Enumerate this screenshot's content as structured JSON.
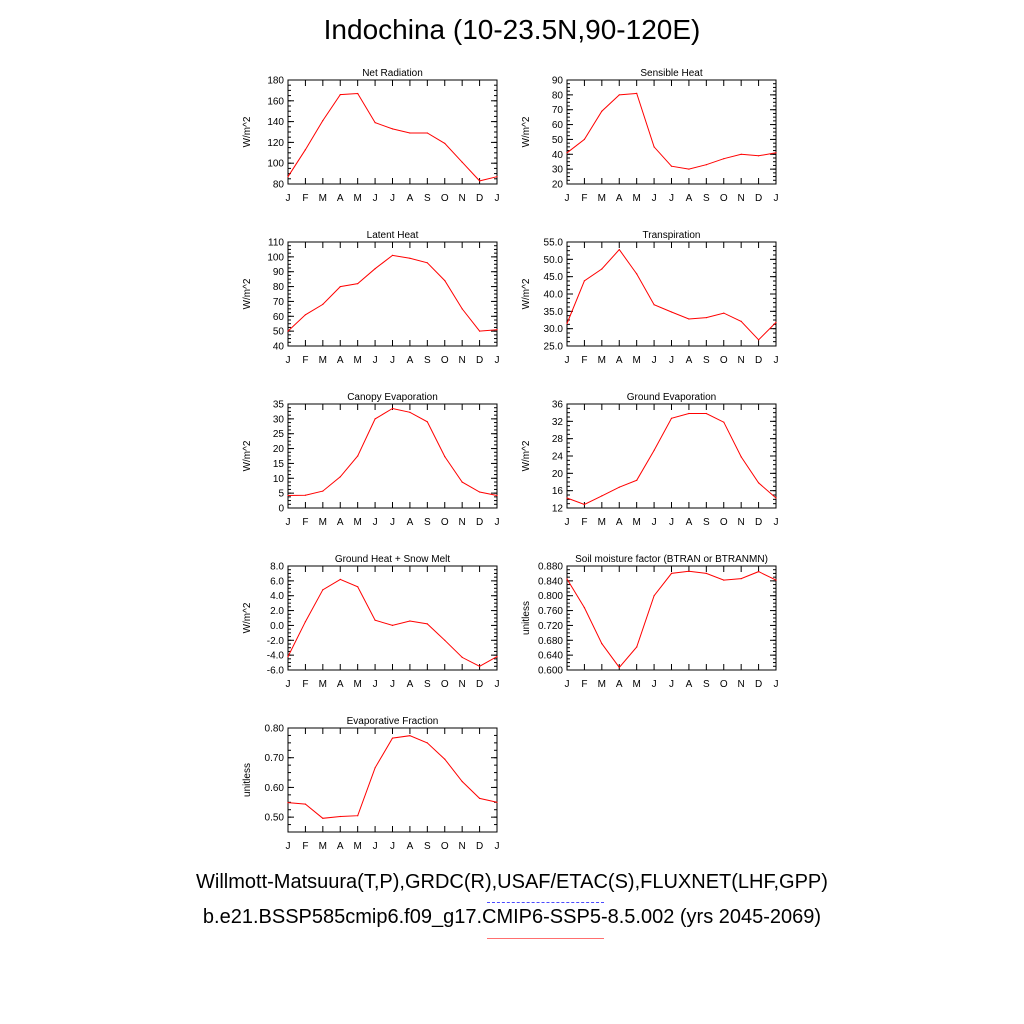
{
  "title": "Indochina (10-23.5N,90-120E)",
  "months": [
    "J",
    "F",
    "M",
    "A",
    "M",
    "J",
    "J",
    "A",
    "S",
    "O",
    "N",
    "D",
    "J"
  ],
  "colors": {
    "model_line": "#ff0000",
    "obs_line": "#5555ff",
    "axis": "#000000"
  },
  "legend": {
    "obs": "Willmott-Matsuura(T,P),GRDC(R),USAF/ETAC(S),FLUXNET(LHF,GPP)",
    "model": "b.e21.BSSP585cmip6.f09_g17.CMIP6-SSP5-8.5.002 (yrs 2045-2069)"
  },
  "chart_data": [
    {
      "type": "line",
      "title": "Net Radiation",
      "ylabel": "W/m^2",
      "ylim": [
        80,
        180
      ],
      "yticks": [
        80,
        100,
        120,
        140,
        160,
        180
      ],
      "yticklabels": [
        "80",
        "100",
        "120",
        "140",
        "160",
        "180"
      ],
      "values": [
        87,
        113,
        141,
        166,
        167,
        139,
        133,
        129,
        129,
        119,
        101,
        83,
        87
      ]
    },
    {
      "type": "line",
      "title": "Sensible Heat",
      "ylabel": "W/m^2",
      "ylim": [
        20,
        90
      ],
      "yticks": [
        20,
        30,
        40,
        50,
        60,
        70,
        80,
        90
      ],
      "yticklabels": [
        "20",
        "30",
        "40",
        "50",
        "60",
        "70",
        "80",
        "90"
      ],
      "values": [
        41,
        50,
        69,
        80,
        81,
        45,
        32,
        30,
        33,
        37,
        40,
        39,
        41
      ]
    },
    {
      "type": "line",
      "title": "Latent Heat",
      "ylabel": "W/m^2",
      "ylim": [
        40,
        110
      ],
      "yticks": [
        40,
        50,
        60,
        70,
        80,
        90,
        100,
        110
      ],
      "yticklabels": [
        "40",
        "50",
        "60",
        "70",
        "80",
        "90",
        "100",
        "110"
      ],
      "values": [
        50,
        61,
        68,
        80,
        82,
        92,
        101,
        99,
        96,
        84,
        65,
        50,
        51
      ]
    },
    {
      "type": "line",
      "title": "Transpiration",
      "ylabel": "W/m^2",
      "ylim": [
        25,
        55
      ],
      "yticks": [
        25,
        30,
        35,
        40,
        45,
        50,
        55
      ],
      "yticklabels": [
        "25.0",
        "30.0",
        "35.0",
        "40.0",
        "45.0",
        "50.0",
        "55.0"
      ],
      "values": [
        31.5,
        43.8,
        47.2,
        52.8,
        45.8,
        36.9,
        34.8,
        32.8,
        33.2,
        34.5,
        32.1,
        26.8,
        31.8
      ]
    },
    {
      "type": "line",
      "title": "Canopy Evaporation",
      "ylabel": "W/m^2",
      "ylim": [
        0,
        35
      ],
      "yticks": [
        0,
        5,
        10,
        15,
        20,
        25,
        30,
        35
      ],
      "yticklabels": [
        "0",
        "5",
        "10",
        "15",
        "20",
        "25",
        "30",
        "35"
      ],
      "values": [
        4.2,
        4.3,
        5.7,
        10.5,
        17.5,
        30.0,
        33.5,
        32.2,
        29.0,
        17.3,
        8.7,
        5.4,
        4.2
      ]
    },
    {
      "type": "line",
      "title": "Ground Evaporation",
      "ylabel": "W/m^2",
      "ylim": [
        12,
        36
      ],
      "yticks": [
        12,
        16,
        20,
        24,
        28,
        32,
        36
      ],
      "yticklabels": [
        "12",
        "16",
        "20",
        "24",
        "28",
        "32",
        "36"
      ],
      "values": [
        14.3,
        12.8,
        14.8,
        16.8,
        18.4,
        25.3,
        32.7,
        33.8,
        33.8,
        31.8,
        23.8,
        17.8,
        14.3
      ]
    },
    {
      "type": "line",
      "title": "Ground Heat + Snow Melt",
      "ylabel": "W/m^2",
      "ylim": [
        -6,
        8
      ],
      "yticks": [
        -6,
        -4,
        -2,
        0,
        2,
        4,
        6,
        8
      ],
      "yticklabels": [
        "-6.0",
        "-4.0",
        "-2.0",
        "0.0",
        "2.0",
        "4.0",
        "6.0",
        "8.0"
      ],
      "values": [
        -4.2,
        0.5,
        4.8,
        6.2,
        5.2,
        0.7,
        0.0,
        0.6,
        0.2,
        -2.0,
        -4.3,
        -5.5,
        -4.2
      ]
    },
    {
      "type": "line",
      "title": "Soil moisture factor (BTRAN or BTRANMN)",
      "ylabel": "unitless",
      "ylim": [
        0.6,
        0.88
      ],
      "yticks": [
        0.6,
        0.64,
        0.68,
        0.72,
        0.76,
        0.8,
        0.84,
        0.88
      ],
      "yticklabels": [
        "0.600",
        "0.640",
        "0.680",
        "0.720",
        "0.760",
        "0.800",
        "0.840",
        "0.880"
      ],
      "values": [
        0.845,
        0.768,
        0.671,
        0.607,
        0.662,
        0.8,
        0.86,
        0.866,
        0.86,
        0.842,
        0.846,
        0.865,
        0.842
      ]
    },
    {
      "type": "line",
      "title": "Evaporative Fraction",
      "ylabel": "unitless",
      "ylim": [
        0.45,
        0.8
      ],
      "yticks": [
        0.5,
        0.6,
        0.7,
        0.8
      ],
      "yticklabels": [
        "0.50",
        "0.60",
        "0.70",
        "0.80"
      ],
      "values": [
        0.549,
        0.544,
        0.496,
        0.502,
        0.505,
        0.666,
        0.766,
        0.774,
        0.75,
        0.695,
        0.62,
        0.563,
        0.55
      ]
    }
  ]
}
